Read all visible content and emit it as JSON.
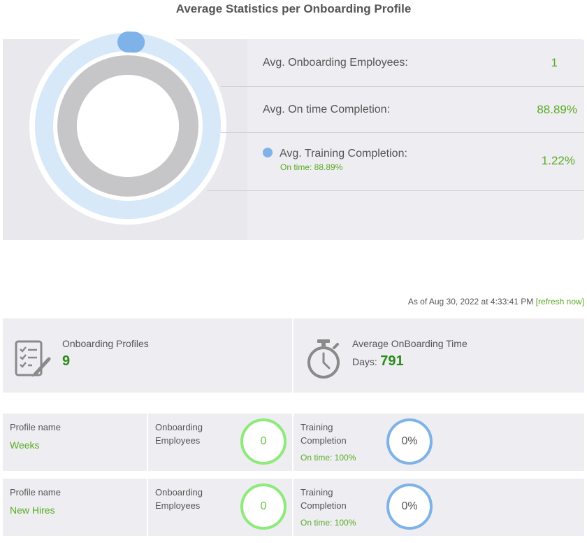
{
  "title": "Average Statistics per Onboarding Profile",
  "stats": {
    "onboarding_employees_label": "Avg. Onboarding Employees:",
    "onboarding_employees_value": "1",
    "on_time_completion_label": "Avg. On time Completion:",
    "on_time_completion_value": "88.89%",
    "training_completion_label": "Avg. Training Completion:",
    "training_completion_sub": "On time: 88.89%",
    "training_completion_value": "1.22%",
    "training_completion_fraction": 0.0122
  },
  "asof": {
    "text": "As of Aug 30, 2022 at 4:33:41 PM",
    "refresh": "[refresh now]"
  },
  "summary": {
    "profiles_label": "Onboarding Profiles",
    "profiles_value": "9",
    "avg_time_label": "Average OnBoarding Time",
    "days_label": "Days:",
    "days_value": "791"
  },
  "profiles": [
    {
      "name_caption": "Profile name",
      "name": "Weeks",
      "employees_caption_1": "Onboarding",
      "employees_caption_2": "Employees",
      "employees_value": "0",
      "training_caption_1": "Training",
      "training_caption_2": "Completion",
      "on_time": "On time: 100%",
      "training_value": "0%"
    },
    {
      "name_caption": "Profile name",
      "name": "New Hires",
      "employees_caption_1": "Onboarding",
      "employees_caption_2": "Employees",
      "employees_value": "0",
      "training_caption_1": "Training",
      "training_caption_2": "Completion",
      "on_time": "On time: 100%",
      "training_value": "0%"
    }
  ],
  "colors": {
    "accent_green": "#5aaa22",
    "value_green": "#2a8a1a",
    "ring_blue": "#7fb2e8",
    "ring_light_blue": "#d7e8f8",
    "ring_gray": "#c6c6c8",
    "ring_green": "#8eea7a"
  },
  "icons": {
    "profiles": "checklist-pen-icon",
    "time": "stopwatch-icon"
  }
}
